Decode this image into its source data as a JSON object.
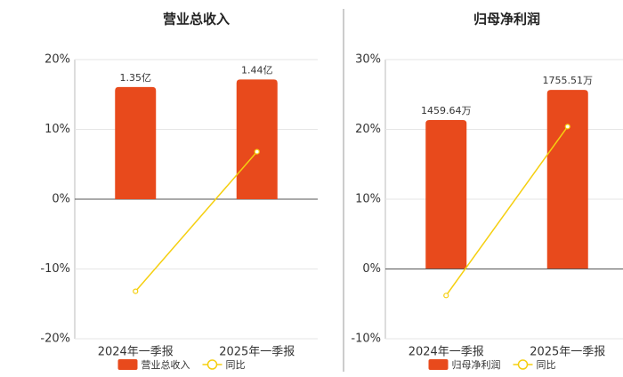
{
  "chart_data": [
    {
      "type": "bar",
      "title": "营业总收入",
      "categories": [
        "2024年一季报",
        "2025年一季报"
      ],
      "series": [
        {
          "name": "营业总收入",
          "type": "bar",
          "axis": "y2",
          "color": "#e84a1c",
          "values": [
            1.35,
            1.44
          ],
          "value_labels": [
            "1.35亿",
            "1.44亿"
          ]
        },
        {
          "name": "同比",
          "type": "line",
          "axis": "y",
          "color": "#f5cf10",
          "values": [
            -13.2,
            6.8
          ]
        }
      ],
      "ylim": [
        -20,
        20
      ],
      "yticks": [
        {
          "value": -20,
          "label": "-20%"
        },
        {
          "value": -10,
          "label": "-10%"
        },
        {
          "value": 0,
          "label": "0%"
        },
        {
          "value": 10,
          "label": "10%"
        },
        {
          "value": 20,
          "label": "20%"
        }
      ],
      "y2lim": [
        -1.68,
        1.68
      ],
      "grid": true
    },
    {
      "type": "bar",
      "title": "归母净利润",
      "categories": [
        "2024年一季报",
        "2025年一季报"
      ],
      "series": [
        {
          "name": "归母净利润",
          "type": "bar",
          "axis": "y2",
          "color": "#e84a1c",
          "values": [
            1459.64,
            1755.51
          ],
          "value_labels": [
            "1459.64万",
            "1755.51万"
          ]
        },
        {
          "name": "同比",
          "type": "line",
          "axis": "y",
          "color": "#f5cf10",
          "values": [
            -3.8,
            20.4
          ]
        }
      ],
      "ylim": [
        -10,
        30
      ],
      "yticks": [
        {
          "value": -10,
          "label": "-10%"
        },
        {
          "value": 0,
          "label": "0%"
        },
        {
          "value": 10,
          "label": "10%"
        },
        {
          "value": 20,
          "label": "20%"
        },
        {
          "value": 30,
          "label": "30%"
        }
      ],
      "y2lim": [
        -690,
        2054
      ],
      "grid": true
    }
  ]
}
